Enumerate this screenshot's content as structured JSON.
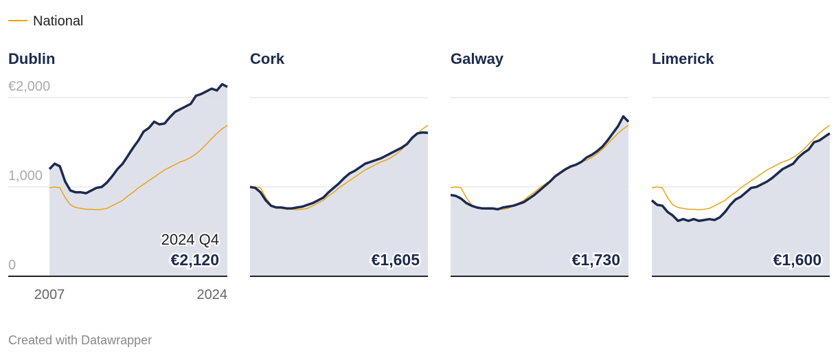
{
  "chart_data": {
    "type": "line",
    "x": [
      2007,
      2007.5,
      2008,
      2008.5,
      2009,
      2009.5,
      2010,
      2010.5,
      2011,
      2011.5,
      2012,
      2012.5,
      2013,
      2013.5,
      2014,
      2014.5,
      2015,
      2015.5,
      2016,
      2016.5,
      2017,
      2017.5,
      2018,
      2018.5,
      2019,
      2019.5,
      2020,
      2020.5,
      2021,
      2021.5,
      2022,
      2022.5,
      2023,
      2023.5,
      2024
    ],
    "xlim": [
      2007,
      2024
    ],
    "xticks": [
      2007,
      2024
    ],
    "ylim": [
      0,
      2150
    ],
    "yticks": [
      0,
      {
        "value": 1000,
        "label": "1,000"
      },
      {
        "value": 2000,
        "label": "€2,000"
      }
    ],
    "grid": true,
    "area_color": "#dfe1ea",
    "annotation": "2024 Q4",
    "reference": {
      "name": "National",
      "color": "#e8a317",
      "values": [
        990,
        1000,
        990,
        880,
        800,
        770,
        760,
        750,
        750,
        745,
        750,
        760,
        790,
        820,
        850,
        900,
        940,
        990,
        1030,
        1070,
        1110,
        1150,
        1190,
        1220,
        1250,
        1280,
        1300,
        1330,
        1370,
        1420,
        1480,
        1540,
        1600,
        1650,
        1690
      ]
    },
    "series": [
      {
        "name": "Dublin",
        "color": "#1b2a4e",
        "values": [
          1200,
          1260,
          1230,
          1060,
          960,
          940,
          940,
          930,
          960,
          990,
          1000,
          1050,
          1120,
          1200,
          1260,
          1350,
          1440,
          1520,
          1620,
          1660,
          1730,
          1700,
          1710,
          1780,
          1840,
          1870,
          1900,
          1930,
          2020,
          2040,
          2070,
          2100,
          2080,
          2150,
          2120
        ],
        "value_labels": [
          null,
          null,
          null,
          null,
          null,
          null,
          null,
          null,
          null,
          null,
          null,
          null,
          null,
          null,
          null,
          null,
          null,
          null,
          null,
          null,
          null,
          null,
          null,
          null,
          null,
          null,
          null,
          null,
          null,
          null,
          null,
          null,
          null,
          null,
          "€2,120"
        ]
      },
      {
        "name": "Cork",
        "color": "#1b2a4e",
        "values": [
          1000,
          990,
          940,
          850,
          790,
          770,
          770,
          760,
          760,
          770,
          780,
          800,
          820,
          850,
          880,
          940,
          990,
          1040,
          1100,
          1150,
          1180,
          1220,
          1260,
          1280,
          1300,
          1320,
          1350,
          1380,
          1410,
          1440,
          1480,
          1550,
          1600,
          1610,
          1605
        ],
        "value_labels": [
          null,
          null,
          null,
          null,
          null,
          null,
          null,
          null,
          null,
          null,
          null,
          null,
          null,
          null,
          null,
          null,
          null,
          null,
          null,
          null,
          null,
          null,
          null,
          null,
          null,
          null,
          null,
          null,
          null,
          null,
          null,
          null,
          null,
          null,
          "€1,605"
        ]
      },
      {
        "name": "Galway",
        "color": "#1b2a4e",
        "values": [
          910,
          900,
          870,
          820,
          790,
          770,
          760,
          760,
          760,
          750,
          770,
          780,
          790,
          810,
          830,
          870,
          910,
          960,
          1010,
          1060,
          1120,
          1160,
          1200,
          1230,
          1250,
          1280,
          1330,
          1360,
          1400,
          1450,
          1520,
          1600,
          1680,
          1790,
          1730
        ],
        "value_labels": [
          null,
          null,
          null,
          null,
          null,
          null,
          null,
          null,
          null,
          null,
          null,
          null,
          null,
          null,
          null,
          null,
          null,
          null,
          null,
          null,
          null,
          null,
          null,
          null,
          null,
          null,
          null,
          null,
          null,
          null,
          null,
          null,
          null,
          null,
          "€1,730"
        ]
      },
      {
        "name": "Limerick",
        "color": "#1b2a4e",
        "values": [
          850,
          800,
          790,
          720,
          680,
          620,
          640,
          620,
          640,
          620,
          630,
          640,
          630,
          660,
          720,
          800,
          860,
          890,
          940,
          990,
          1000,
          1030,
          1060,
          1100,
          1150,
          1200,
          1230,
          1260,
          1330,
          1380,
          1420,
          1500,
          1520,
          1560,
          1600
        ],
        "value_labels": [
          null,
          null,
          null,
          null,
          null,
          null,
          null,
          null,
          null,
          null,
          null,
          null,
          null,
          null,
          null,
          null,
          null,
          null,
          null,
          null,
          null,
          null,
          null,
          null,
          null,
          null,
          null,
          null,
          null,
          null,
          null,
          null,
          null,
          null,
          "€1,600"
        ]
      }
    ]
  },
  "footer": {
    "credit": "Created with Datawrapper"
  }
}
